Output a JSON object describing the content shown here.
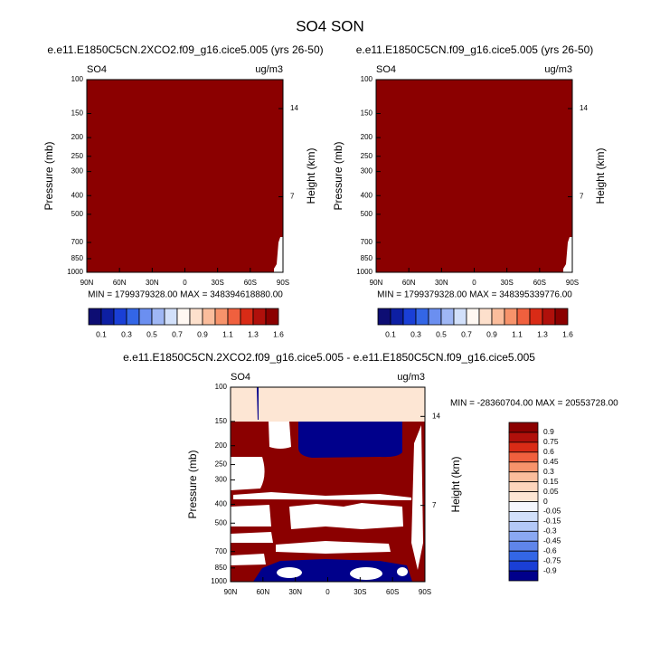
{
  "title": "SO4 SON",
  "chart_data": [
    {
      "type": "contour",
      "title": "e.e11.E1850C5CN.2XCO2.f09_g16.cice5.005 (yrs 26-50)",
      "left_label": "SO4",
      "right_label": "ug/m3",
      "ylabel": "Pressure (mb)",
      "y2label": "Height (km)",
      "ylim": [
        1000,
        100
      ],
      "ylog": true,
      "yticks": [
        100,
        150,
        200,
        250,
        300,
        400,
        500,
        700,
        850,
        1000
      ],
      "y2lim": [
        1,
        16.3
      ],
      "y2ticks": [
        14,
        7
      ],
      "xlim": [
        90,
        -90
      ],
      "xticks": [
        {
          "value": 90,
          "label": "90N"
        },
        {
          "value": 60,
          "label": "60N"
        },
        {
          "value": 30,
          "label": "30N"
        },
        0,
        {
          "value": -30,
          "label": "30S"
        },
        {
          "value": -60,
          "label": "60S"
        },
        {
          "value": -90,
          "label": "90S"
        }
      ],
      "stats": "MIN = 1799379328.00  MAX = 348394618880.00",
      "colorbar": {
        "orientation": "horizontal",
        "colors": [
          "#0d0d73",
          "#0d1fa3",
          "#1a3fd6",
          "#3366e6",
          "#6b8ff0",
          "#9fb7f5",
          "#d2e0fa",
          "#fff8f2",
          "#fde0cc",
          "#fbbd9c",
          "#f7936b",
          "#f0603e",
          "#d92b16",
          "#b0100b",
          "#8b0000"
        ],
        "labels": [
          0.1,
          0.3,
          0.5,
          0.7,
          0.9,
          1.1,
          1.3,
          1.6
        ]
      }
    },
    {
      "type": "contour",
      "title": "e.e11.E1850C5CN.f09_g16.cice5.005 (yrs 26-50)",
      "left_label": "SO4",
      "right_label": "ug/m3",
      "ylabel": "Pressure (mb)",
      "y2label": "Height (km)",
      "ylim": [
        1000,
        100
      ],
      "ylog": true,
      "yticks": [
        100,
        150,
        200,
        250,
        300,
        400,
        500,
        700,
        850,
        1000
      ],
      "y2lim": [
        1,
        16.3
      ],
      "y2ticks": [
        14,
        7
      ],
      "xlim": [
        90,
        -90
      ],
      "xticks": [
        {
          "value": 90,
          "label": "90N"
        },
        {
          "value": 60,
          "label": "60N"
        },
        {
          "value": 30,
          "label": "30N"
        },
        0,
        {
          "value": -30,
          "label": "30S"
        },
        {
          "value": -60,
          "label": "60S"
        },
        {
          "value": -90,
          "label": "90S"
        }
      ],
      "stats": "MIN = 1799379328.00  MAX = 348395339776.00",
      "colorbar": {
        "orientation": "horizontal",
        "colors": [
          "#0d0d73",
          "#0d1fa3",
          "#1a3fd6",
          "#3366e6",
          "#6b8ff0",
          "#9fb7f5",
          "#d2e0fa",
          "#fff8f2",
          "#fde0cc",
          "#fbbd9c",
          "#f7936b",
          "#f0603e",
          "#d92b16",
          "#b0100b",
          "#8b0000"
        ],
        "labels": [
          0.1,
          0.3,
          0.5,
          0.7,
          0.9,
          1.1,
          1.3,
          1.6
        ]
      }
    },
    {
      "type": "contour",
      "title": "e.e11.E1850C5CN.2XCO2.f09_g16.cice5.005 - e.e11.E1850C5CN.f09_g16.cice5.005",
      "left_label": "SO4",
      "right_label": "ug/m3",
      "ylabel": "Pressure (mb)",
      "y2label": "Height (km)",
      "ylim": [
        1000,
        100
      ],
      "ylog": true,
      "yticks": [
        100,
        150,
        200,
        250,
        300,
        400,
        500,
        700,
        850,
        1000
      ],
      "y2lim": [
        1,
        16.3
      ],
      "y2ticks": [
        14,
        7
      ],
      "xlim": [
        90,
        -90
      ],
      "xticks": [
        {
          "value": 90,
          "label": "90N"
        },
        {
          "value": 60,
          "label": "60N"
        },
        {
          "value": 30,
          "label": "30N"
        },
        0,
        {
          "value": -30,
          "label": "30S"
        },
        {
          "value": -60,
          "label": "60S"
        },
        {
          "value": -90,
          "label": "90S"
        }
      ],
      "stats": "MIN = -28360704.00  MAX = 20553728.00",
      "colorbar": {
        "orientation": "vertical",
        "colors": [
          "#8b0000",
          "#b0100b",
          "#d92b16",
          "#f0603e",
          "#f7936b",
          "#fbbd9c",
          "#fdd5bc",
          "#fde6d4",
          "#f4f7fe",
          "#d2e0fa",
          "#b3c8f7",
          "#8aa8f2",
          "#5f85ea",
          "#3366e6",
          "#1a3fd6",
          "#00008b"
        ],
        "labels": [
          0.9,
          0.75,
          0.6,
          0.45,
          0.3,
          0.15,
          0.05,
          0,
          -0.05,
          -0.15,
          -0.3,
          -0.45,
          -0.6,
          -0.75,
          -0.9
        ]
      }
    }
  ]
}
